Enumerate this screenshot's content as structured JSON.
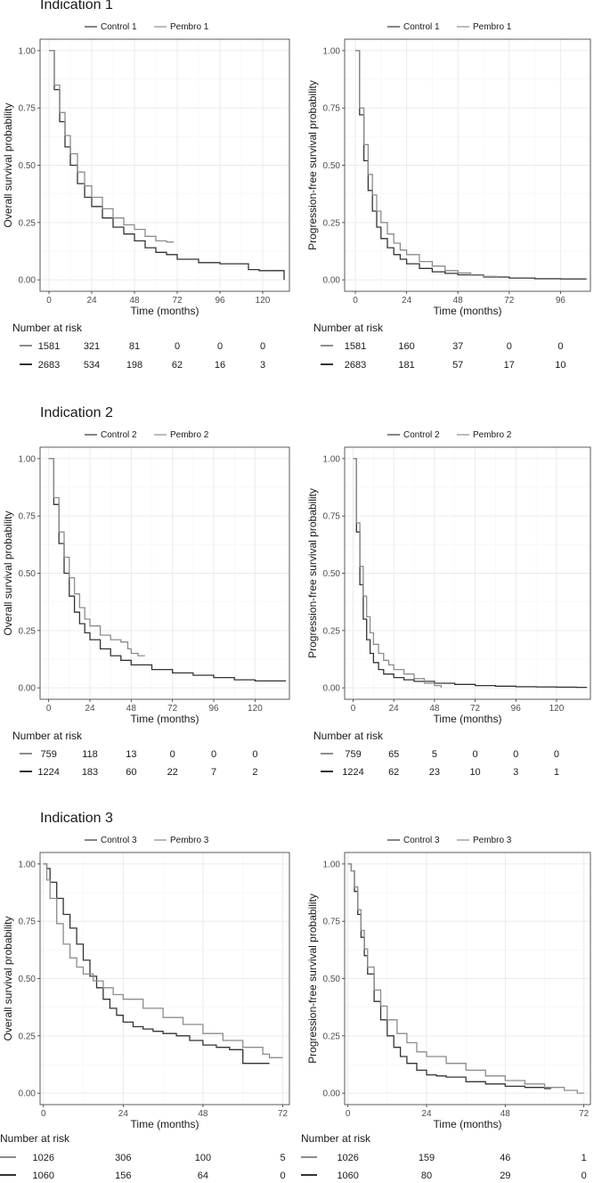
{
  "sections": [
    {
      "title": "Indication 1"
    },
    {
      "title": "Indication 2"
    },
    {
      "title": "Indication 3"
    }
  ],
  "colors": {
    "control": "#333333",
    "pembro": "#8c8c8c",
    "grid_major": "#ebebeb",
    "grid_minor": "#f5f5f5",
    "border": "#333333"
  },
  "chart_data": [
    {
      "id": "ind1-os",
      "type": "line",
      "indication": "Indication 1",
      "xlabel": "Time (months)",
      "ylabel": "Overall survival probability",
      "xlim": [
        -5,
        135
      ],
      "ylim": [
        0,
        1
      ],
      "x_ticks": [
        0,
        24,
        48,
        72,
        96,
        120
      ],
      "y_ticks": [
        0.0,
        0.25,
        0.5,
        0.75,
        1.0
      ],
      "y_tick_labels": [
        "0.00",
        "0.25",
        "0.50",
        "0.75",
        "1.00"
      ],
      "legend": [
        {
          "name": "Control 1",
          "color": "#333333"
        },
        {
          "name": "Pembro 1",
          "color": "#8c8c8c"
        }
      ],
      "series": [
        {
          "name": "Control 1",
          "color": "#333333",
          "x": [
            0,
            3,
            6,
            9,
            12,
            16,
            20,
            24,
            30,
            36,
            42,
            48,
            54,
            60,
            66,
            72,
            84,
            96,
            108,
            112,
            118,
            130,
            132
          ],
          "y": [
            1.0,
            0.83,
            0.69,
            0.58,
            0.5,
            0.42,
            0.36,
            0.32,
            0.27,
            0.23,
            0.2,
            0.17,
            0.14,
            0.12,
            0.11,
            0.09,
            0.075,
            0.07,
            0.07,
            0.045,
            0.04,
            0.04,
            0.0
          ]
        },
        {
          "name": "Pembro 1",
          "color": "#8c8c8c",
          "x": [
            0,
            3,
            6,
            9,
            12,
            16,
            20,
            24,
            30,
            36,
            42,
            48,
            54,
            60,
            66,
            70
          ],
          "y": [
            1.0,
            0.85,
            0.73,
            0.63,
            0.55,
            0.47,
            0.41,
            0.36,
            0.31,
            0.27,
            0.24,
            0.22,
            0.19,
            0.17,
            0.165,
            0.165
          ]
        }
      ],
      "risk_table": {
        "title": "Number at risk",
        "times": [
          0,
          24,
          48,
          72,
          96,
          120
        ],
        "rows": [
          {
            "name": "Pembro 1",
            "color": "#8c8c8c",
            "values": [
              "1581",
              "321",
              "81",
              "0",
              "0",
              "0"
            ]
          },
          {
            "name": "Control 1",
            "color": "#333333",
            "values": [
              "2683",
              "534",
              "198",
              "62",
              "16",
              "3"
            ]
          }
        ]
      }
    },
    {
      "id": "ind1-pfs",
      "type": "line",
      "indication": "Indication 1",
      "xlabel": "Time (months)",
      "ylabel": "Progression-free survival probability",
      "xlim": [
        -5,
        110
      ],
      "ylim": [
        0,
        1
      ],
      "x_ticks": [
        0,
        24,
        48,
        72,
        96
      ],
      "y_ticks": [
        0.0,
        0.25,
        0.5,
        0.75,
        1.0
      ],
      "y_tick_labels": [
        "0.00",
        "0.25",
        "0.50",
        "0.75",
        "1.00"
      ],
      "legend": [
        {
          "name": "Control 1",
          "color": "#333333"
        },
        {
          "name": "Pembro 1",
          "color": "#8c8c8c"
        }
      ],
      "series": [
        {
          "name": "Control 1",
          "color": "#333333",
          "x": [
            0,
            2,
            4,
            6,
            8,
            10,
            12,
            15,
            18,
            21,
            24,
            30,
            36,
            42,
            48,
            60,
            72,
            84,
            96,
            108
          ],
          "y": [
            1.0,
            0.72,
            0.52,
            0.39,
            0.3,
            0.23,
            0.18,
            0.14,
            0.11,
            0.09,
            0.07,
            0.05,
            0.035,
            0.028,
            0.022,
            0.012,
            0.008,
            0.005,
            0.004,
            0.003
          ]
        },
        {
          "name": "Pembro 1",
          "color": "#8c8c8c",
          "x": [
            0,
            2,
            4,
            6,
            8,
            10,
            12,
            15,
            18,
            21,
            24,
            30,
            36,
            42,
            48,
            54,
            60,
            66
          ],
          "y": [
            1.0,
            0.75,
            0.59,
            0.46,
            0.37,
            0.3,
            0.25,
            0.2,
            0.16,
            0.13,
            0.11,
            0.08,
            0.06,
            0.04,
            0.03,
            0.02,
            0.015,
            0.01
          ]
        }
      ],
      "risk_table": {
        "title": "Number at risk",
        "times": [
          0,
          24,
          48,
          72,
          96
        ],
        "rows": [
          {
            "name": "Pembro 1",
            "color": "#8c8c8c",
            "values": [
              "1581",
              "160",
              "37",
              "0",
              "0"
            ]
          },
          {
            "name": "Control 1",
            "color": "#333333",
            "values": [
              "2683",
              "181",
              "57",
              "17",
              "10"
            ]
          }
        ]
      }
    },
    {
      "id": "ind2-os",
      "type": "line",
      "indication": "Indication 2",
      "xlabel": "Time (months)",
      "ylabel": "Overall survival probability",
      "xlim": [
        -5,
        140
      ],
      "ylim": [
        0,
        1
      ],
      "x_ticks": [
        0,
        24,
        48,
        72,
        96,
        120
      ],
      "y_ticks": [
        0.0,
        0.25,
        0.5,
        0.75,
        1.0
      ],
      "y_tick_labels": [
        "0.00",
        "0.25",
        "0.50",
        "0.75",
        "1.00"
      ],
      "legend": [
        {
          "name": "Control 2",
          "color": "#333333"
        },
        {
          "name": "Pembro 2",
          "color": "#8c8c8c"
        }
      ],
      "series": [
        {
          "name": "Control 2",
          "color": "#333333",
          "x": [
            0,
            3,
            6,
            9,
            12,
            15,
            18,
            21,
            24,
            30,
            36,
            42,
            48,
            60,
            72,
            84,
            96,
            108,
            120,
            132,
            138
          ],
          "y": [
            1.0,
            0.8,
            0.63,
            0.5,
            0.4,
            0.33,
            0.28,
            0.24,
            0.21,
            0.17,
            0.14,
            0.12,
            0.1,
            0.08,
            0.065,
            0.055,
            0.045,
            0.035,
            0.03,
            0.03,
            0.03
          ]
        },
        {
          "name": "Pembro 2",
          "color": "#8c8c8c",
          "x": [
            0,
            3,
            6,
            9,
            12,
            15,
            18,
            21,
            24,
            30,
            36,
            42,
            46,
            48,
            52,
            56
          ],
          "y": [
            1.0,
            0.83,
            0.68,
            0.57,
            0.48,
            0.41,
            0.35,
            0.3,
            0.27,
            0.23,
            0.21,
            0.2,
            0.17,
            0.15,
            0.14,
            0.14
          ]
        }
      ],
      "risk_table": {
        "title": "Number at risk",
        "times": [
          0,
          24,
          48,
          72,
          96,
          120
        ],
        "rows": [
          {
            "name": "Pembro 2",
            "color": "#8c8c8c",
            "values": [
              "759",
              "118",
              "13",
              "0",
              "0",
              "0"
            ]
          },
          {
            "name": "Control 2",
            "color": "#333333",
            "values": [
              "1224",
              "183",
              "60",
              "22",
              "7",
              "2"
            ]
          }
        ]
      }
    },
    {
      "id": "ind2-pfs",
      "type": "line",
      "indication": "Indication 2",
      "xlabel": "Time (months)",
      "ylabel": "Progression-free survival probability",
      "xlim": [
        -5,
        140
      ],
      "ylim": [
        0,
        1
      ],
      "x_ticks": [
        0,
        24,
        48,
        72,
        96,
        120
      ],
      "y_ticks": [
        0.0,
        0.25,
        0.5,
        0.75,
        1.0
      ],
      "y_tick_labels": [
        "0.00",
        "0.25",
        "0.50",
        "0.75",
        "1.00"
      ],
      "legend": [
        {
          "name": "Control 2",
          "color": "#333333"
        },
        {
          "name": "Pembro 2",
          "color": "#8c8c8c"
        }
      ],
      "series": [
        {
          "name": "Control 2",
          "color": "#333333",
          "x": [
            0,
            2,
            4,
            6,
            8,
            10,
            12,
            15,
            18,
            24,
            30,
            36,
            48,
            60,
            72,
            84,
            96,
            108,
            120,
            132,
            138
          ],
          "y": [
            1.0,
            0.68,
            0.45,
            0.3,
            0.21,
            0.15,
            0.11,
            0.08,
            0.06,
            0.045,
            0.035,
            0.028,
            0.02,
            0.015,
            0.01,
            0.007,
            0.005,
            0.004,
            0.003,
            0.002,
            0.002
          ]
        },
        {
          "name": "Pembro 2",
          "color": "#8c8c8c",
          "x": [
            0,
            2,
            4,
            6,
            8,
            10,
            12,
            15,
            18,
            21,
            24,
            30,
            36,
            42,
            48,
            52
          ],
          "y": [
            1.0,
            0.72,
            0.53,
            0.4,
            0.31,
            0.24,
            0.19,
            0.15,
            0.12,
            0.1,
            0.08,
            0.06,
            0.04,
            0.02,
            0.01,
            0.0
          ]
        }
      ],
      "risk_table": {
        "title": "Number at risk",
        "times": [
          0,
          24,
          48,
          72,
          96,
          120
        ],
        "rows": [
          {
            "name": "Pembro 2",
            "color": "#8c8c8c",
            "values": [
              "759",
              "65",
              "5",
              "0",
              "0",
              "0"
            ]
          },
          {
            "name": "Control 2",
            "color": "#333333",
            "values": [
              "1224",
              "62",
              "23",
              "10",
              "3",
              "1"
            ]
          }
        ]
      }
    },
    {
      "id": "ind3-os",
      "type": "line",
      "indication": "Indication 3",
      "xlabel": "Time (months)",
      "ylabel": "Overall survival probability",
      "xlim": [
        -1,
        74
      ],
      "ylim": [
        0,
        1
      ],
      "x_ticks": [
        0,
        24,
        48,
        72
      ],
      "y_ticks": [
        0.0,
        0.25,
        0.5,
        0.75,
        1.0
      ],
      "y_tick_labels": [
        "0.00",
        "0.25",
        "0.50",
        "0.75",
        "1.00"
      ],
      "legend": [
        {
          "name": "Control 3",
          "color": "#333333"
        },
        {
          "name": "Pembro 3",
          "color": "#8c8c8c"
        }
      ],
      "series": [
        {
          "name": "Control 3",
          "color": "#333333",
          "x": [
            0,
            1,
            2,
            4,
            6,
            8,
            10,
            12,
            14,
            16,
            18,
            20,
            22,
            24,
            27,
            30,
            33,
            36,
            40,
            44,
            48,
            52,
            56,
            58,
            60,
            64,
            68
          ],
          "y": [
            1.0,
            0.98,
            0.92,
            0.85,
            0.78,
            0.72,
            0.65,
            0.58,
            0.51,
            0.46,
            0.41,
            0.37,
            0.34,
            0.31,
            0.29,
            0.28,
            0.27,
            0.26,
            0.25,
            0.23,
            0.21,
            0.2,
            0.19,
            0.19,
            0.13,
            0.13,
            0.13
          ]
        },
        {
          "name": "Pembro 3",
          "color": "#8c8c8c",
          "x": [
            0,
            1,
            2,
            4,
            6,
            8,
            10,
            12,
            15,
            18,
            21,
            24,
            30,
            36,
            42,
            48,
            54,
            60,
            66,
            68,
            72
          ],
          "y": [
            1.0,
            0.93,
            0.85,
            0.74,
            0.65,
            0.59,
            0.55,
            0.52,
            0.49,
            0.46,
            0.43,
            0.41,
            0.37,
            0.33,
            0.3,
            0.26,
            0.23,
            0.2,
            0.17,
            0.155,
            0.155
          ]
        }
      ],
      "risk_table": {
        "title": "Number at risk",
        "times": [
          0,
          24,
          48,
          72
        ],
        "rows": [
          {
            "name": "Pembro 3",
            "color": "#8c8c8c",
            "values": [
              "1026",
              "306",
              "100",
              "5"
            ]
          },
          {
            "name": "Control 3",
            "color": "#333333",
            "values": [
              "1060",
              "156",
              "64",
              "0"
            ]
          }
        ]
      }
    },
    {
      "id": "ind3-pfs",
      "type": "line",
      "indication": "Indication 3",
      "xlabel": "Time (months)",
      "ylabel": "Progression-free survival probability",
      "xlim": [
        -1,
        74
      ],
      "ylim": [
        0,
        1
      ],
      "x_ticks": [
        0,
        24,
        48,
        72
      ],
      "y_ticks": [
        0.0,
        0.25,
        0.5,
        0.75,
        1.0
      ],
      "y_tick_labels": [
        "0.00",
        "0.25",
        "0.50",
        "0.75",
        "1.00"
      ],
      "legend": [
        {
          "name": "Control 3",
          "color": "#333333"
        },
        {
          "name": "Pembro 3",
          "color": "#8c8c8c"
        }
      ],
      "series": [
        {
          "name": "Control 3",
          "color": "#333333",
          "x": [
            0,
            1,
            2,
            3,
            4,
            5,
            6,
            8,
            10,
            12,
            14,
            16,
            18,
            21,
            24,
            27,
            30,
            36,
            42,
            48,
            54,
            60,
            62
          ],
          "y": [
            1.0,
            0.97,
            0.88,
            0.78,
            0.68,
            0.6,
            0.52,
            0.4,
            0.32,
            0.25,
            0.2,
            0.16,
            0.13,
            0.1,
            0.08,
            0.075,
            0.07,
            0.05,
            0.04,
            0.03,
            0.025,
            0.02,
            0.02
          ]
        },
        {
          "name": "Pembro 3",
          "color": "#8c8c8c",
          "x": [
            0,
            1,
            2,
            3,
            4,
            5,
            6,
            8,
            10,
            12,
            15,
            18,
            21,
            24,
            30,
            36,
            42,
            48,
            54,
            60,
            66,
            70,
            72
          ],
          "y": [
            1.0,
            0.97,
            0.9,
            0.8,
            0.71,
            0.63,
            0.55,
            0.45,
            0.38,
            0.32,
            0.26,
            0.22,
            0.18,
            0.16,
            0.13,
            0.1,
            0.075,
            0.055,
            0.04,
            0.025,
            0.012,
            0.0,
            0.0
          ]
        }
      ],
      "risk_table": {
        "title": "Number at risk",
        "times": [
          0,
          24,
          48,
          72
        ],
        "rows": [
          {
            "name": "Pembro 3",
            "color": "#8c8c8c",
            "values": [
              "1026",
              "159",
              "46",
              "1"
            ]
          },
          {
            "name": "Control 3",
            "color": "#333333",
            "values": [
              "1060",
              "80",
              "29",
              "0"
            ]
          }
        ]
      }
    }
  ]
}
